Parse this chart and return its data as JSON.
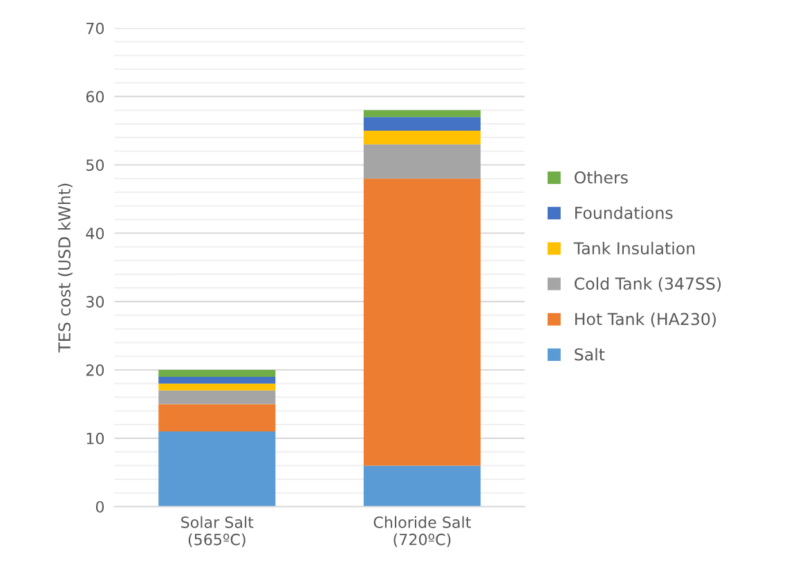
{
  "chart_data": {
    "type": "bar",
    "stacked": true,
    "ylabel": "TES cost (USD kWht)",
    "categories": [
      "Solar Salt\n(565ºC)",
      "Chloride Salt\n(720ºC)"
    ],
    "series": [
      {
        "name": "Salt",
        "color": "#5b9bd5",
        "values": [
          11,
          6
        ]
      },
      {
        "name": "Hot Tank (HA230)",
        "color": "#ed7d31",
        "values": [
          4,
          42
        ]
      },
      {
        "name": "Cold Tank (347SS)",
        "color": "#a5a5a5",
        "values": [
          2,
          5
        ]
      },
      {
        "name": "Tank Insulation",
        "color": "#ffc000",
        "values": [
          1,
          2
        ]
      },
      {
        "name": "Foundations",
        "color": "#4472c4",
        "values": [
          1,
          2
        ]
      },
      {
        "name": "Others",
        "color": "#70ad47",
        "values": [
          1,
          1
        ]
      }
    ],
    "ylim": [
      0,
      70
    ],
    "yticks": [
      0,
      {
        "value": 2,
        "label": null
      },
      {
        "value": 4,
        "label": null
      },
      {
        "value": 6,
        "label": null
      },
      {
        "value": 8,
        "label": null
      },
      10,
      {
        "value": 12,
        "label": null
      },
      {
        "value": 14,
        "label": null
      },
      {
        "value": 16,
        "label": null
      },
      {
        "value": 18,
        "label": null
      },
      20,
      {
        "value": 22,
        "label": null
      },
      {
        "value": 24,
        "label": null
      },
      {
        "value": 26,
        "label": null
      },
      {
        "value": 28,
        "label": null
      },
      30,
      {
        "value": 32,
        "label": null
      },
      {
        "value": 34,
        "label": null
      },
      {
        "value": 36,
        "label": null
      },
      {
        "value": 38,
        "label": null
      },
      40,
      {
        "value": 42,
        "label": null
      },
      {
        "value": 44,
        "label": null
      },
      {
        "value": 46,
        "label": null
      },
      {
        "value": 48,
        "label": null
      },
      50,
      {
        "value": 52,
        "label": null
      },
      {
        "value": 54,
        "label": null
      },
      {
        "value": 56,
        "label": null
      },
      {
        "value": 58,
        "label": null
      },
      60,
      {
        "value": 62,
        "label": null
      },
      {
        "value": 64,
        "label": null
      },
      {
        "value": 66,
        "label": null
      },
      {
        "value": 68,
        "label": null
      },
      70
    ],
    "grid": "y",
    "legend": "right"
  }
}
